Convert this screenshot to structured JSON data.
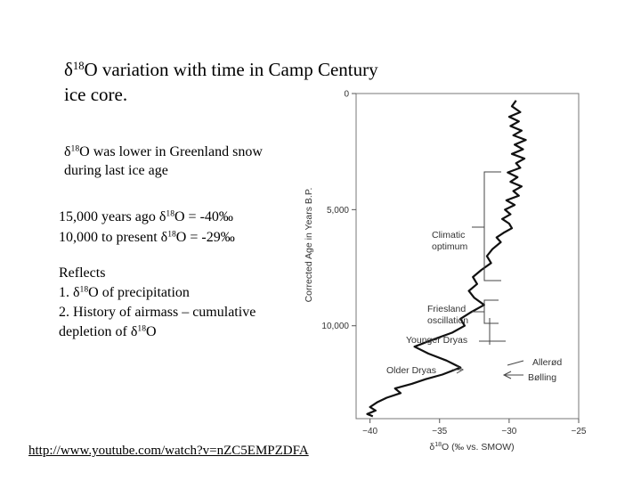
{
  "slide": {
    "title": [
      "δ",
      "18",
      "O variation with time in Camp Century",
      "ice core."
    ],
    "line1": [
      "δ",
      "18",
      "O was lower in Greenland snow"
    ],
    "line2": "during last ice age",
    "line3": [
      "15,000 years ago  δ",
      "18",
      "O = -40‰"
    ],
    "line4": [
      "10,000 to present  δ",
      "18",
      "O = -29‰"
    ],
    "reflects": "Reflects",
    "item1": [
      "1. δ",
      "18",
      "O of precipitation"
    ],
    "item2": "2. History of airmass – cumulative",
    "item3": [
      "depletion of δ",
      "18",
      "O"
    ],
    "link": "http://www.youtube.com/watch?v=nZC5EMPZDFA"
  },
  "chart_data": {
    "type": "line",
    "xlabel": [
      "δ",
      "18",
      "O (‰ vs. SMOW)"
    ],
    "ylabel": "Corrected Age in Years B.P.",
    "xlim": [
      -41,
      -25
    ],
    "ylim": [
      0,
      14000
    ],
    "x_ticks": [
      "−40",
      "−35",
      "−30",
      "−25"
    ],
    "x_tick_values": [
      -40,
      -35,
      -30,
      -25
    ],
    "y_ticks": [
      "0",
      "5,000",
      "10,000"
    ],
    "y_tick_values": [
      0,
      5000,
      10000
    ],
    "annotations": {
      "climatic_optimum": [
        "Climatic",
        "optimum"
      ],
      "friesland": [
        "Friesland",
        "oscillation"
      ],
      "younger_dryas": "Younger Dryas",
      "older_dryas": "Older Dryas",
      "allerod": "Allerød",
      "bolling": "Bølling"
    },
    "series": [
      {
        "x": [
          -29.5,
          -29.8,
          -29.2,
          -30.0,
          -29.3,
          -29.9,
          -29.1,
          -29.7,
          -28.8,
          -29.6,
          -29.0,
          -29.8,
          -28.9,
          -29.5,
          -29.2,
          -30.1,
          -29.4,
          -29.9,
          -29.1,
          -29.7,
          -29.3,
          -30.2,
          -29.6,
          -30.3,
          -29.9,
          -30.5,
          -30.0,
          -29.8,
          -30.4,
          -30.9,
          -30.6,
          -31.2,
          -31.6,
          -31.3,
          -32.0,
          -32.6,
          -32.3,
          -32.9,
          -32.5,
          -31.8,
          -32.7,
          -33.5,
          -33.2,
          -34.1,
          -35.5,
          -36.8,
          -35.8,
          -34.5,
          -33.5,
          -34.8,
          -36.0,
          -37.0,
          -38.2,
          -37.8,
          -38.8,
          -39.5,
          -40.0,
          -39.6,
          -40.2,
          -39.8
        ],
        "y": [
          300,
          550,
          800,
          1000,
          1200,
          1400,
          1600,
          1800,
          2000,
          2200,
          2400,
          2600,
          2800,
          3000,
          3200,
          3400,
          3600,
          3800,
          4000,
          4200,
          4400,
          4600,
          4800,
          5000,
          5200,
          5400,
          5600,
          5800,
          6000,
          6200,
          6400,
          6700,
          7000,
          7300,
          7600,
          7900,
          8200,
          8500,
          8800,
          9100,
          9400,
          9700,
          10000,
          10300,
          10600,
          10900,
          11200,
          11500,
          11800,
          12100,
          12300,
          12500,
          12700,
          12900,
          13100,
          13300,
          13500,
          13650,
          13800,
          13900
        ]
      }
    ]
  }
}
